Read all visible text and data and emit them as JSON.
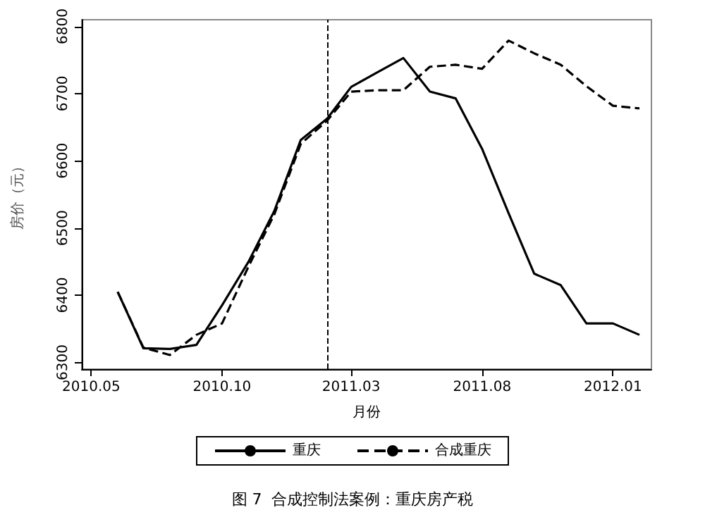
{
  "chart_data": {
    "type": "line",
    "xlabel": "月份",
    "ylabel": "房价（元）",
    "annotations": [
      "图 7  合成控制法案例：重庆房产税"
    ],
    "x": [
      "2010-06",
      "2010-07",
      "2010-08",
      "2010-09",
      "2010-10",
      "2010-11",
      "2010-12",
      "2011-01",
      "2011-02",
      "2011-03",
      "2011-04",
      "2011-05",
      "2011-06",
      "2011-07",
      "2011-08",
      "2011-09",
      "2011-10",
      "2011-11",
      "2011-12",
      "2012-01",
      "2012-02"
    ],
    "series": [
      {
        "name": "重庆",
        "color": "#000000",
        "line_style": "solid",
        "values": [
          6405,
          6321,
          6320,
          6326,
          6385,
          6450,
          6525,
          6631,
          6663,
          6710,
          6732,
          6753,
          6703,
          6693,
          6618,
          6522,
          6432,
          6415,
          6358,
          6358,
          6341
        ]
      },
      {
        "name": "合成重庆",
        "color": "#000000",
        "line_style": "dashed",
        "values": [
          6405,
          6322,
          6311,
          6341,
          6358,
          6443,
          6520,
          6625,
          6660,
          6703,
          6705,
          6705,
          6740,
          6743,
          6737,
          6779,
          6760,
          6743,
          6711,
          6682,
          6678
        ]
      }
    ],
    "xlim": [
      "2010-04-20",
      "2012-02-15"
    ],
    "xticks": [
      {
        "value": "2010-05",
        "label": "2010.05"
      },
      {
        "value": "2010-10",
        "label": "2010.10"
      },
      {
        "value": "2011-03",
        "label": "2011.03"
      },
      {
        "value": "2011-08",
        "label": "2011.08"
      },
      {
        "value": "2012-01",
        "label": "2012.01"
      }
    ],
    "ylim": [
      6290,
      6810
    ],
    "yticks": [
      6300,
      6400,
      6500,
      6600,
      6700,
      6800
    ],
    "ref_lines": [
      {
        "axis": "x",
        "value": "2011-02",
        "color": "#000000",
        "line_style": "dashed"
      }
    ],
    "grid": false,
    "legend": "bottom",
    "marker": "none"
  }
}
